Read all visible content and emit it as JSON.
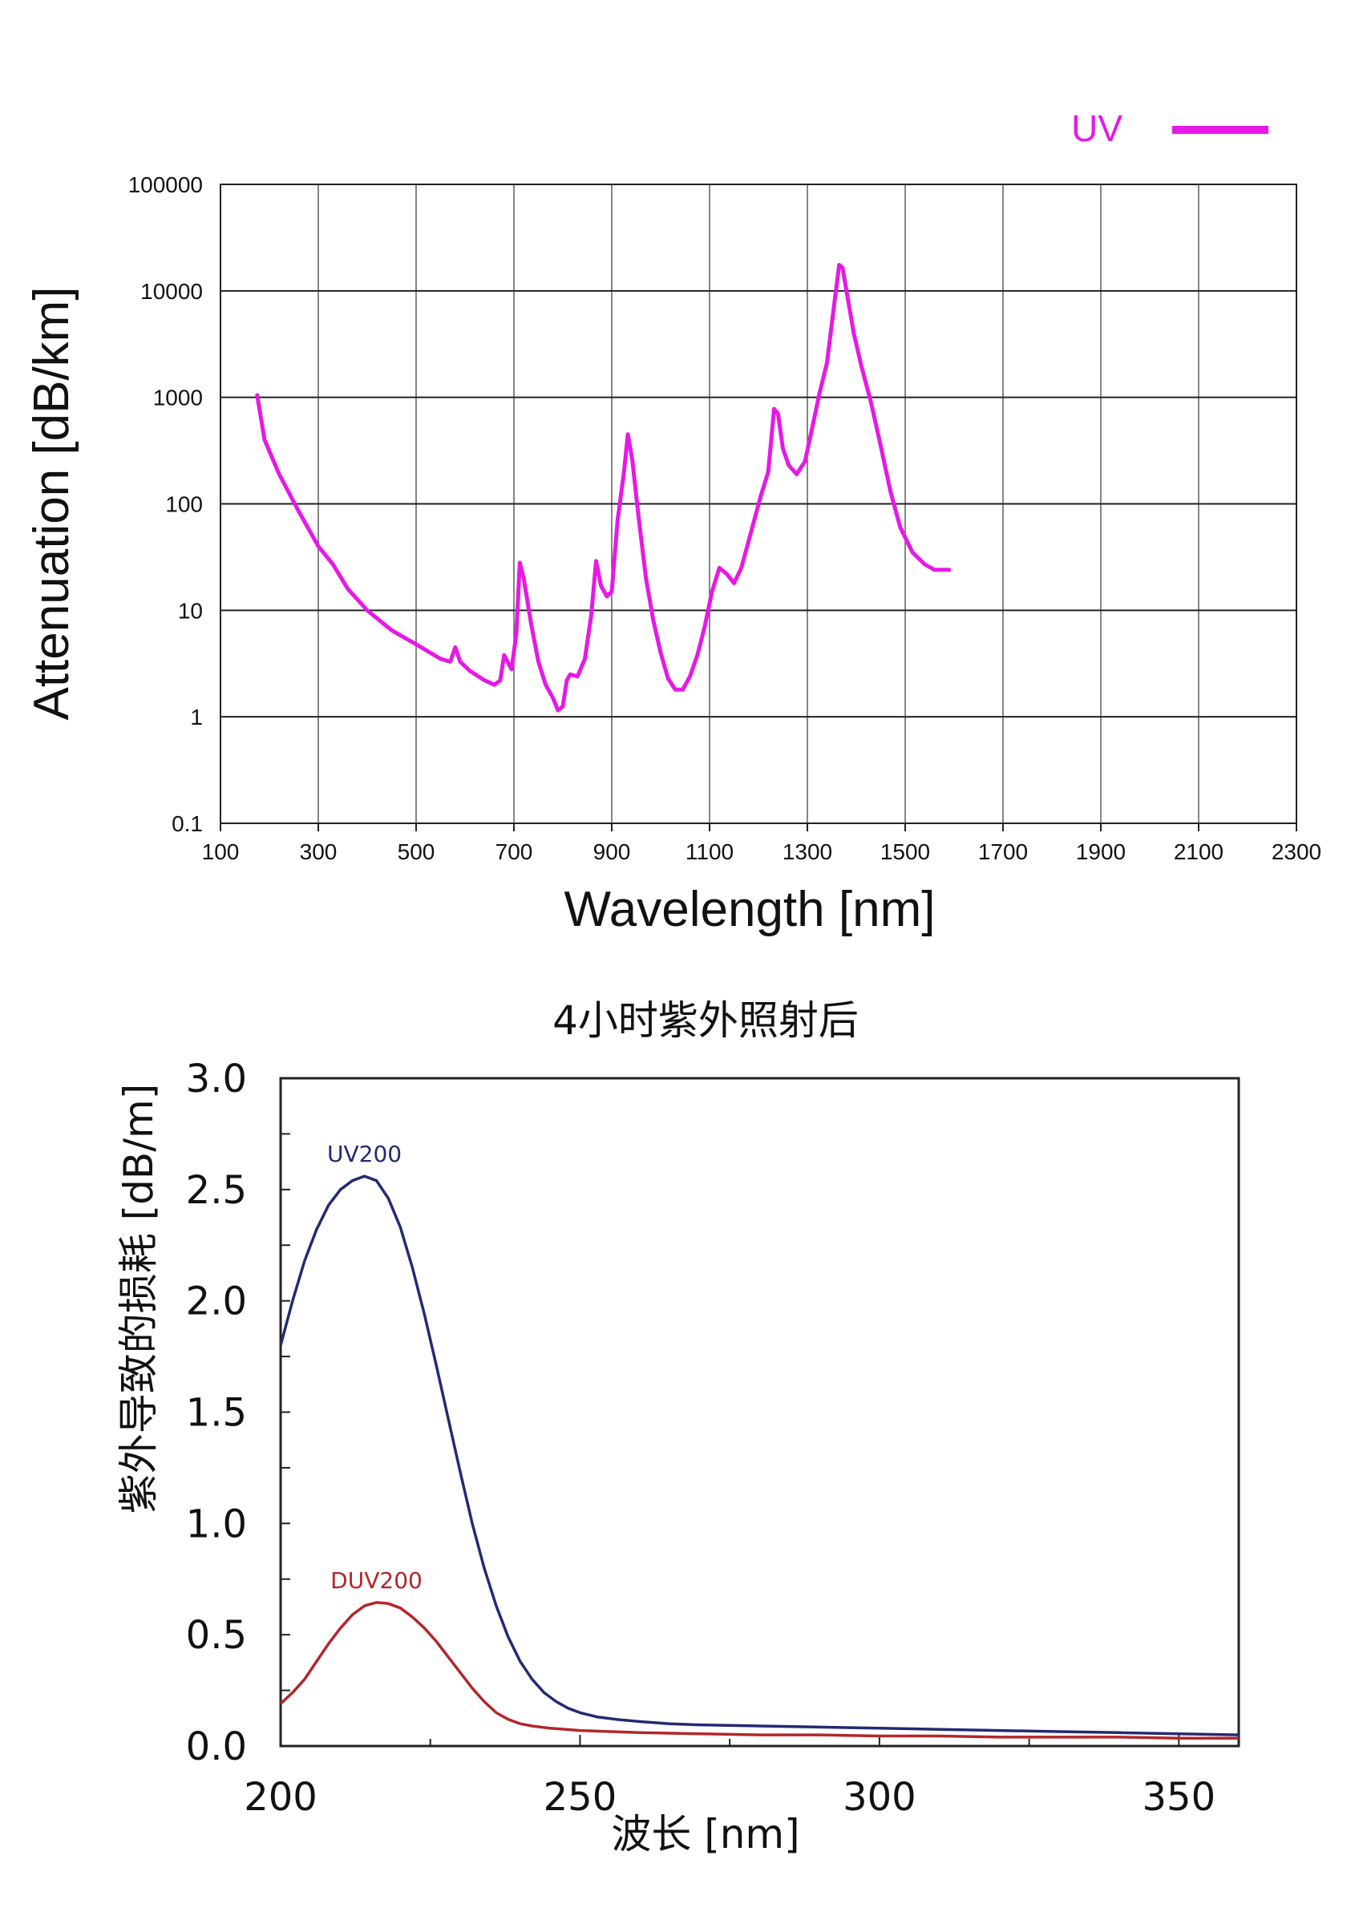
{
  "chart_data": [
    {
      "type": "line",
      "title": "",
      "xlabel": "Wavelength [nm]",
      "ylabel": "Attenuation [dB/km]",
      "xlim": [
        100,
        2300
      ],
      "ylim": [
        0.1,
        100000
      ],
      "yscale": "log",
      "xticks": [
        "100",
        "300",
        "500",
        "700",
        "900",
        "1100",
        "1300",
        "1500",
        "1700",
        "1900",
        "2100",
        "2300"
      ],
      "yticks": [
        "0.1",
        "1",
        "10",
        "100",
        "1000",
        "10000",
        "100000"
      ],
      "grid": true,
      "legend": {
        "position": "top-right",
        "entries": [
          "UV"
        ]
      },
      "series": [
        {
          "name": "UV",
          "color": "#e619e6",
          "x": [
            175,
            190,
            220,
            260,
            300,
            330,
            360,
            400,
            450,
            500,
            550,
            570,
            580,
            590,
            610,
            640,
            660,
            672,
            680,
            695,
            705,
            712,
            720,
            735,
            750,
            765,
            780,
            790,
            800,
            808,
            815,
            830,
            845,
            858,
            868,
            878,
            890,
            900,
            912,
            925,
            933,
            942,
            955,
            970,
            985,
            1000,
            1015,
            1030,
            1045,
            1060,
            1075,
            1090,
            1105,
            1120,
            1135,
            1150,
            1165,
            1185,
            1205,
            1220,
            1232,
            1240,
            1250,
            1262,
            1278,
            1295,
            1310,
            1325,
            1340,
            1355,
            1365,
            1372,
            1380,
            1395,
            1410,
            1430,
            1450,
            1470,
            1490,
            1515,
            1540,
            1560,
            1575,
            1590
          ],
          "y": [
            1050,
            400,
            190,
            85,
            40,
            27,
            16,
            10,
            6.5,
            4.8,
            3.5,
            3.3,
            4.5,
            3.3,
            2.7,
            2.2,
            2.0,
            2.2,
            3.8,
            2.8,
            6,
            28,
            20,
            7.5,
            3.3,
            2.0,
            1.5,
            1.15,
            1.25,
            2.2,
            2.5,
            2.4,
            3.5,
            9,
            29,
            17,
            13.5,
            15,
            70,
            200,
            450,
            260,
            75,
            20,
            8,
            4,
            2.3,
            1.8,
            1.8,
            2.4,
            3.8,
            7,
            15,
            25,
            22,
            18,
            25,
            55,
            120,
            200,
            780,
            700,
            330,
            230,
            190,
            250,
            520,
            1100,
            2100,
            7500,
            17500,
            16500,
            10000,
            4000,
            2000,
            900,
            350,
            130,
            60,
            35,
            27,
            24,
            24,
            24
          ]
        }
      ]
    },
    {
      "type": "line",
      "title": "4小时紫外照射后",
      "xlabel": "波长 [nm]",
      "ylabel": "紫外导致的损耗 [dB/m]",
      "xlim": [
        200,
        360
      ],
      "ylim": [
        0,
        3.0
      ],
      "xticks": [
        "200",
        "250",
        "300",
        "350"
      ],
      "yticks": [
        "0.0",
        "0.5",
        "1.0",
        "1.5",
        "2.0",
        "2.5",
        "3.0"
      ],
      "grid": false,
      "series": [
        {
          "name": "UV200",
          "color": "#232a73",
          "x": [
            200,
            202,
            204,
            206,
            208,
            210,
            212,
            214,
            216,
            218,
            220,
            222,
            224,
            226,
            228,
            230,
            232,
            234,
            236,
            238,
            240,
            242,
            244,
            246,
            248,
            250,
            253,
            256,
            260,
            265,
            270,
            280,
            290,
            300,
            310,
            320,
            330,
            340,
            350,
            360
          ],
          "y": [
            1.8,
            2.0,
            2.18,
            2.32,
            2.43,
            2.5,
            2.54,
            2.56,
            2.54,
            2.46,
            2.33,
            2.15,
            1.94,
            1.71,
            1.47,
            1.23,
            1.0,
            0.8,
            0.63,
            0.49,
            0.38,
            0.3,
            0.24,
            0.2,
            0.17,
            0.15,
            0.13,
            0.12,
            0.11,
            0.1,
            0.095,
            0.09,
            0.085,
            0.08,
            0.075,
            0.07,
            0.065,
            0.06,
            0.055,
            0.05
          ]
        },
        {
          "name": "DUV200",
          "color": "#b3262a",
          "x": [
            200,
            202,
            204,
            206,
            208,
            210,
            212,
            214,
            216,
            218,
            220,
            222,
            224,
            226,
            228,
            230,
            232,
            234,
            236,
            238,
            240,
            242,
            245,
            250,
            255,
            260,
            270,
            280,
            290,
            300,
            310,
            320,
            330,
            340,
            350,
            360
          ],
          "y": [
            0.19,
            0.24,
            0.3,
            0.38,
            0.46,
            0.53,
            0.59,
            0.63,
            0.645,
            0.64,
            0.62,
            0.58,
            0.53,
            0.47,
            0.4,
            0.33,
            0.26,
            0.2,
            0.15,
            0.12,
            0.1,
            0.09,
            0.08,
            0.07,
            0.065,
            0.06,
            0.055,
            0.05,
            0.05,
            0.045,
            0.045,
            0.04,
            0.04,
            0.04,
            0.035,
            0.035
          ]
        }
      ]
    }
  ]
}
